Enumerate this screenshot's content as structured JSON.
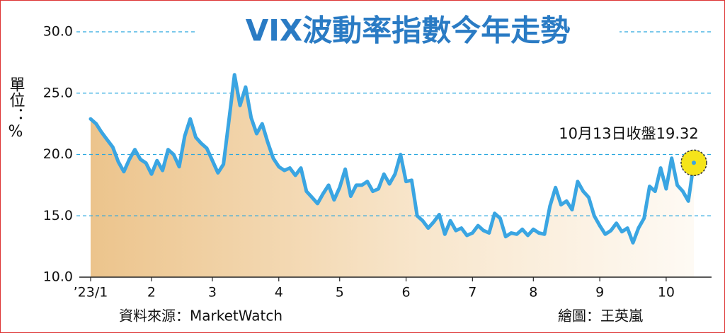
{
  "chart_data": {
    "type": "line",
    "title": "VIX波動率指數今年走勢",
    "y_label": "單位：%",
    "annotation": "10月13日收盤19.32",
    "source": "資料來源：MarketWatch",
    "credit": "繪圖：王英嵐",
    "categories": [
      "’23/1",
      null,
      null,
      null,
      null,
      null,
      null,
      null,
      null,
      null,
      null,
      "2",
      null,
      null,
      null,
      null,
      null,
      null,
      null,
      null,
      null,
      null,
      "3",
      null,
      null,
      null,
      null,
      null,
      null,
      null,
      null,
      null,
      null,
      null,
      "4",
      null,
      null,
      null,
      null,
      null,
      null,
      null,
      null,
      null,
      null,
      "5",
      null,
      null,
      null,
      null,
      null,
      null,
      null,
      null,
      null,
      null,
      null,
      "6",
      null,
      null,
      null,
      null,
      null,
      null,
      null,
      null,
      null,
      null,
      null,
      "7",
      null,
      null,
      null,
      null,
      null,
      null,
      null,
      null,
      null,
      null,
      "8",
      null,
      null,
      null,
      null,
      null,
      null,
      null,
      null,
      null,
      null,
      null,
      "9",
      null,
      null,
      null,
      null,
      null,
      null,
      null,
      null,
      null,
      null,
      null,
      "10",
      null,
      null,
      null,
      null,
      null
    ],
    "series": [
      {
        "color": "#3aa5e2",
        "values": [
          22.9,
          22.5,
          21.8,
          21.2,
          20.6,
          19.4,
          18.6,
          19.6,
          20.4,
          19.6,
          19.3,
          18.4,
          19.5,
          18.7,
          20.4,
          20.0,
          19.0,
          21.5,
          22.9,
          21.4,
          20.9,
          20.5,
          19.5,
          18.5,
          19.2,
          22.8,
          26.5,
          24.0,
          25.5,
          23.0,
          21.7,
          22.5,
          21.0,
          19.7,
          19.0,
          18.7,
          18.9,
          18.3,
          18.9,
          17.0,
          16.5,
          16.0,
          16.8,
          17.5,
          16.3,
          17.3,
          18.8,
          16.6,
          17.5,
          17.5,
          17.8,
          17.0,
          17.2,
          18.4,
          17.6,
          18.4,
          20.0,
          17.8,
          17.9,
          15.0,
          14.6,
          14.0,
          14.5,
          15.1,
          13.5,
          14.6,
          13.8,
          14.0,
          13.4,
          13.6,
          14.2,
          13.8,
          13.6,
          15.2,
          14.8,
          13.3,
          13.6,
          13.5,
          13.9,
          13.4,
          13.9,
          13.6,
          13.5,
          15.8,
          17.3,
          15.9,
          16.2,
          15.5,
          17.8,
          17.0,
          16.5,
          15.0,
          14.2,
          13.5,
          13.8,
          14.4,
          13.7,
          14.0,
          12.8,
          14.0,
          14.8,
          17.4,
          17.0,
          18.9,
          17.2,
          19.7,
          17.5,
          17.0,
          16.2,
          19.32
        ]
      }
    ],
    "ylim": [
      10,
      30
    ],
    "yticks": [
      {
        "value": 10,
        "label": "10.0"
      },
      {
        "value": 15,
        "label": "15.0"
      },
      {
        "value": 20,
        "label": "20.0"
      },
      {
        "value": 25,
        "label": "25.0"
      },
      {
        "value": 30,
        "label": "30.0"
      }
    ],
    "grid": true
  }
}
